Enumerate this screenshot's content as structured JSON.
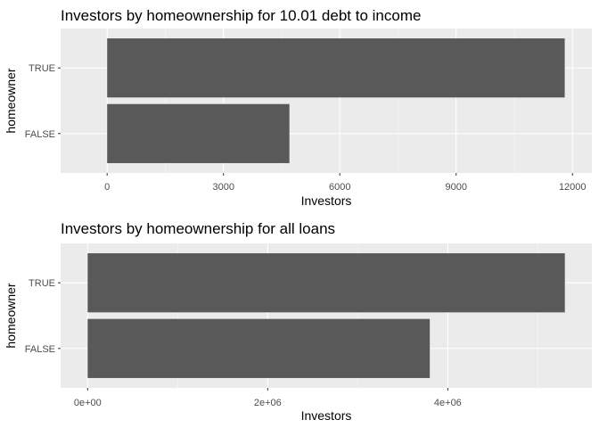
{
  "chart_data": [
    {
      "type": "bar",
      "orientation": "horizontal",
      "title": "Investors by homeownership for 10.01 debt to income",
      "xlabel": "Investors",
      "ylabel": "homeowner",
      "categories": [
        "FALSE",
        "TRUE"
      ],
      "values": [
        4700,
        11800
      ],
      "xlim": [
        -1200,
        12500
      ],
      "xticks": [
        0,
        3000,
        6000,
        9000,
        12000
      ],
      "xtick_labels": [
        "0",
        "3000",
        "6000",
        "9000",
        "12000"
      ],
      "grid": true,
      "legend": "none",
      "colors": {
        "bar": "#595959",
        "panel": "#ebebeb",
        "grid_major": "#ffffff",
        "grid_minor": "#f5f5f5",
        "text": "#4d4d4d"
      }
    },
    {
      "type": "bar",
      "orientation": "horizontal",
      "title": "Investors by homeownership for all loans",
      "xlabel": "Investors",
      "ylabel": "homeowner",
      "categories": [
        "FALSE",
        "TRUE"
      ],
      "values": [
        3800000,
        5300000
      ],
      "xlim": [
        -300000,
        5600000
      ],
      "xticks": [
        0,
        2000000,
        4000000
      ],
      "xtick_labels": [
        "0e+00",
        "2e+06",
        "4e+06"
      ],
      "grid": true,
      "legend": "none",
      "colors": {
        "bar": "#595959",
        "panel": "#ebebeb",
        "grid_major": "#ffffff",
        "grid_minor": "#f5f5f5",
        "text": "#4d4d4d"
      }
    }
  ]
}
